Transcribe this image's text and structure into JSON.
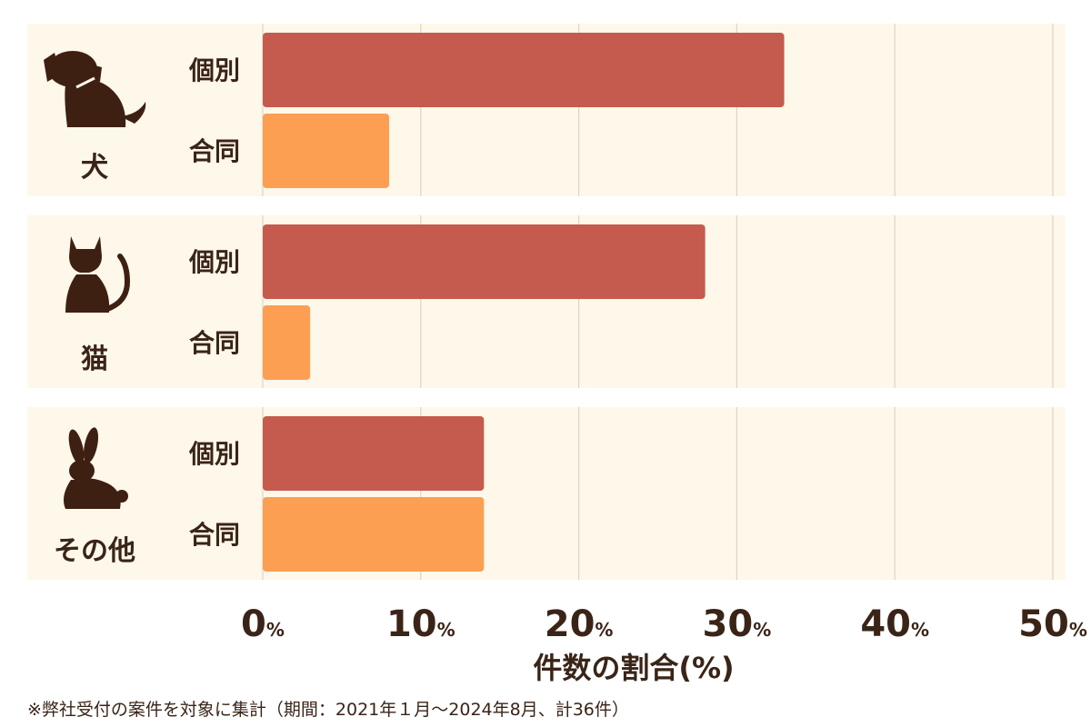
{
  "chart_data": {
    "type": "bar",
    "orientation": "horizontal",
    "groups": [
      {
        "name": "犬",
        "icon": "dog-icon",
        "rows": [
          {
            "label": "個別",
            "value": 33,
            "color": "#c45b4e"
          },
          {
            "label": "合同",
            "value": 8,
            "color": "#fd9f52"
          }
        ]
      },
      {
        "name": "猫",
        "icon": "cat-icon",
        "rows": [
          {
            "label": "個別",
            "value": 28,
            "color": "#c45b4e"
          },
          {
            "label": "合同",
            "value": 3,
            "color": "#fd9f52"
          }
        ]
      },
      {
        "name": "その他",
        "icon": "rabbit-icon",
        "rows": [
          {
            "label": "個別",
            "value": 14,
            "color": "#c45b4e"
          },
          {
            "label": "合同",
            "value": 14,
            "color": "#fd9f52"
          }
        ]
      }
    ],
    "xticks": [
      "0",
      "10",
      "20",
      "30",
      "40",
      "50"
    ],
    "tick_suffix": "%",
    "xlim": [
      0,
      50
    ],
    "xlabel": "件数の割合(%)",
    "grid": true
  },
  "colors": {
    "panel_bg": "#fdf8ea",
    "grid": "#ddd5c4",
    "text": "#3a2418",
    "icon": "#3e2012"
  },
  "footnote": "※弊社受付の案件を対象に集計（期間：2021年１月～2024年8月、計36件）"
}
